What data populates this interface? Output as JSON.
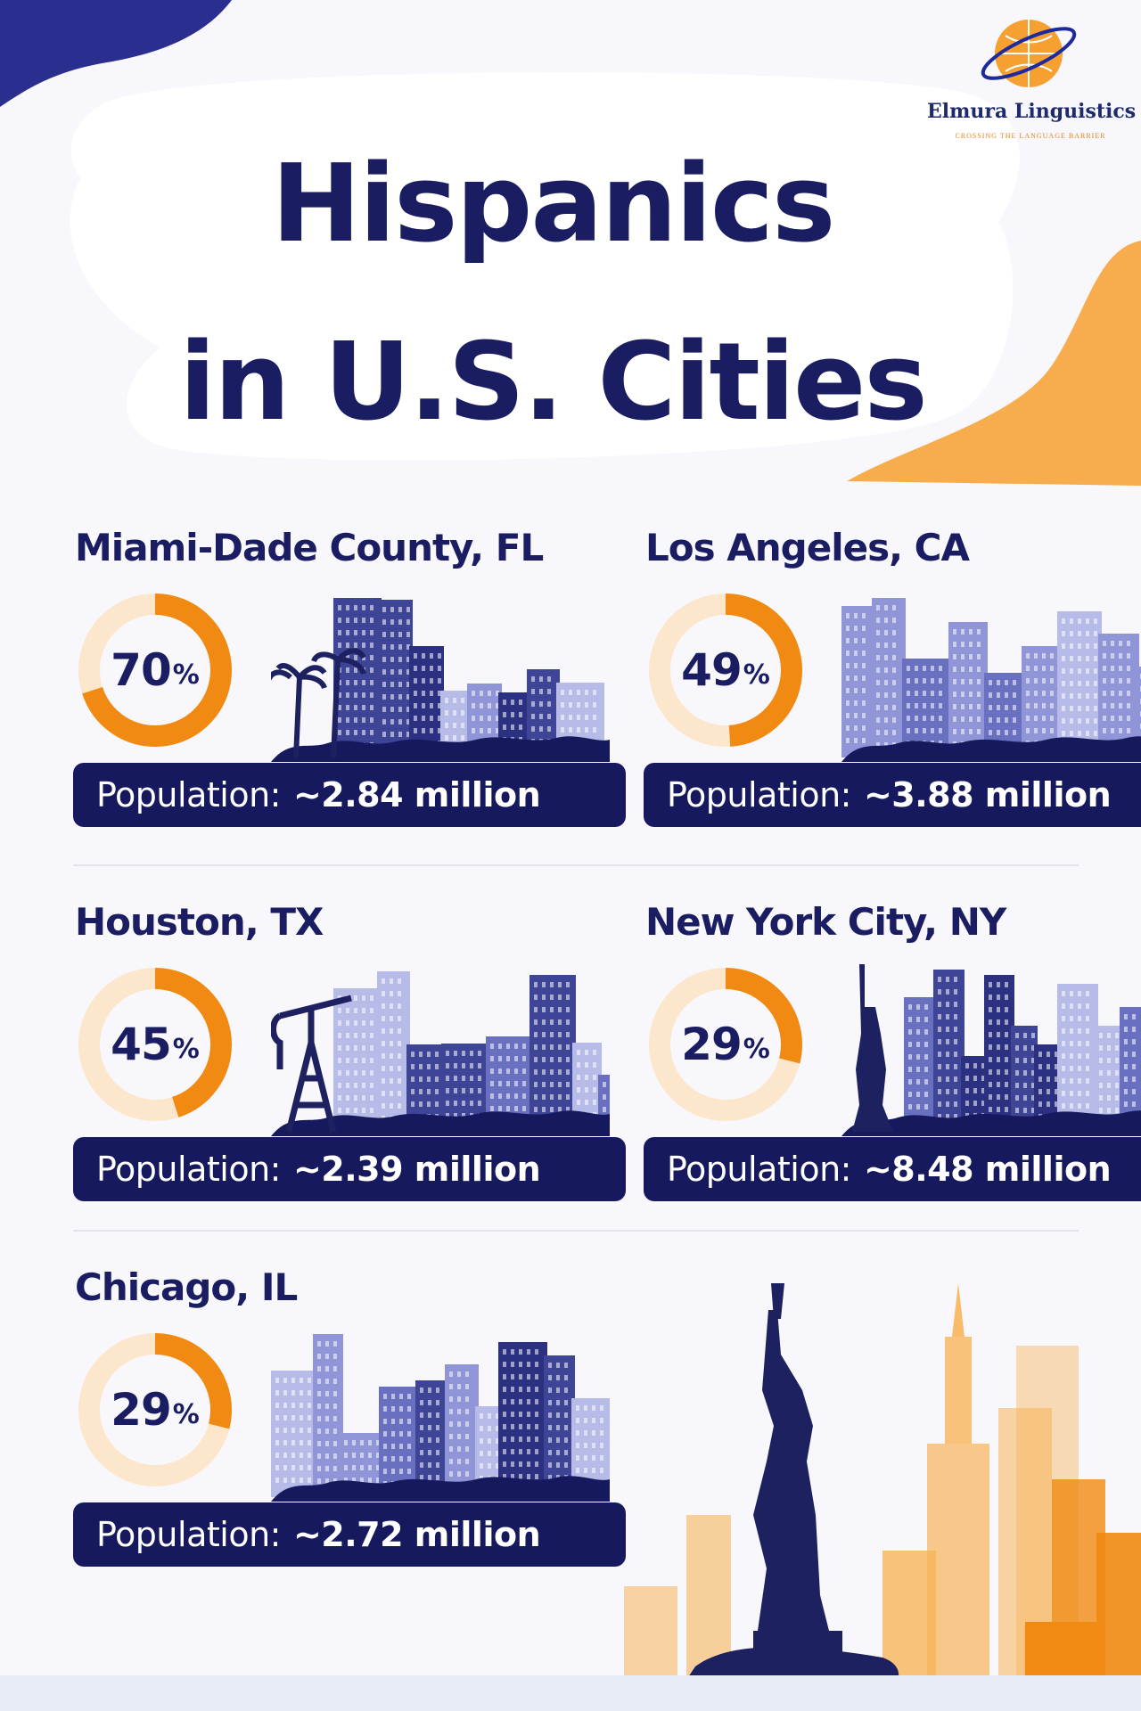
{
  "title_line1": "Hispanics",
  "title_line2": "in U.S. Cities",
  "logo": {
    "name": "Elmura Linguistics",
    "tagline": "CROSSING THE LANGUAGE BARRIER"
  },
  "colors": {
    "navy": "#16195e",
    "orange": "#f08a12",
    "ring_track": "#fde7cc",
    "skyline": "#4a4f9f"
  },
  "cities": [
    {
      "name": "Miami-Dade County, FL",
      "percent": 70,
      "percent_text": "70",
      "percent_symbol": "%",
      "population_label": "Population:",
      "population_value": "~2.84 million",
      "landmark": "palm-trees"
    },
    {
      "name": "Los Angeles, CA",
      "percent": 49,
      "percent_text": "49",
      "percent_symbol": "%",
      "population_label": "Population:",
      "population_value": "~3.88 million",
      "landmark": "none"
    },
    {
      "name": "Houston, TX",
      "percent": 45,
      "percent_text": "45",
      "percent_symbol": "%",
      "population_label": "Population:",
      "population_value": "~2.39 million",
      "landmark": "oil-derrick"
    },
    {
      "name": "New York City, NY",
      "percent": 29,
      "percent_text": "29",
      "percent_symbol": "%",
      "population_label": "Population:",
      "population_value": "~8.48 million",
      "landmark": "statue-of-liberty"
    },
    {
      "name": "Chicago, IL",
      "percent": 29,
      "percent_text": "29",
      "percent_symbol": "%",
      "population_label": "Population:",
      "population_value": "~2.72 million",
      "landmark": "none"
    }
  ]
}
